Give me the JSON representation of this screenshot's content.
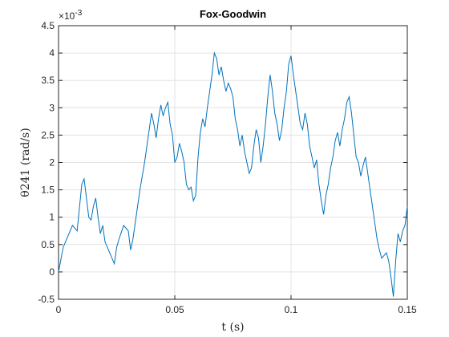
{
  "chart_data": {
    "type": "line",
    "title": "Fox-Goodwin",
    "xlabel": "t (s)",
    "ylabel": "θ241 (rad/s)",
    "y_exponent_label": "×10^-3",
    "y_scale_factor": 0.001,
    "xlim": [
      0,
      0.15
    ],
    "ylim": [
      -0.5,
      4.5
    ],
    "x_ticks": [
      "0",
      "0.05",
      "0.1",
      "0.15"
    ],
    "x_tick_values": [
      0,
      0.05,
      0.1,
      0.15
    ],
    "y_ticks": [
      "-0.5",
      "0",
      "0.5",
      "1",
      "1.5",
      "2",
      "2.5",
      "3",
      "3.5",
      "4",
      "4.5"
    ],
    "y_tick_values": [
      -0.5,
      0,
      0.5,
      1,
      1.5,
      2,
      2.5,
      3,
      3.5,
      4,
      4.5
    ],
    "grid": true,
    "line_color": "#0072BD",
    "series": [
      {
        "x": [
          0,
          0.002,
          0.004,
          0.006,
          0.008,
          0.01,
          0.011,
          0.012,
          0.013,
          0.014,
          0.015,
          0.016,
          0.017,
          0.018,
          0.019,
          0.02,
          0.022,
          0.024,
          0.025,
          0.026,
          0.028,
          0.03,
          0.031,
          0.032,
          0.034,
          0.035,
          0.036,
          0.037,
          0.038,
          0.039,
          0.04,
          0.041,
          0.042,
          0.043,
          0.044,
          0.045,
          0.046,
          0.047,
          0.048,
          0.049,
          0.05,
          0.051,
          0.052,
          0.053,
          0.054,
          0.055,
          0.056,
          0.057,
          0.058,
          0.059,
          0.06,
          0.061,
          0.062,
          0.063,
          0.064,
          0.065,
          0.066,
          0.067,
          0.068,
          0.069,
          0.07,
          0.071,
          0.072,
          0.073,
          0.074,
          0.075,
          0.076,
          0.077,
          0.078,
          0.079,
          0.08,
          0.081,
          0.082,
          0.083,
          0.084,
          0.085,
          0.086,
          0.087,
          0.088,
          0.089,
          0.09,
          0.091,
          0.092,
          0.093,
          0.094,
          0.095,
          0.096,
          0.097,
          0.098,
          0.099,
          0.1,
          0.101,
          0.102,
          0.103,
          0.104,
          0.105,
          0.106,
          0.107,
          0.108,
          0.109,
          0.11,
          0.111,
          0.112,
          0.113,
          0.114,
          0.115,
          0.116,
          0.117,
          0.118,
          0.119,
          0.12,
          0.121,
          0.122,
          0.123,
          0.124,
          0.125,
          0.126,
          0.127,
          0.128,
          0.129,
          0.13,
          0.131,
          0.132,
          0.133,
          0.134,
          0.135,
          0.136,
          0.137,
          0.138,
          0.139,
          0.14,
          0.141,
          0.142,
          0.143,
          0.144,
          0.145,
          0.146,
          0.147,
          0.148,
          0.149,
          0.15
        ],
        "y": [
          0.0,
          0.45,
          0.65,
          0.85,
          0.75,
          1.6,
          1.7,
          1.35,
          1.0,
          0.95,
          1.2,
          1.35,
          1.0,
          0.7,
          0.85,
          0.55,
          0.35,
          0.15,
          0.45,
          0.6,
          0.85,
          0.75,
          0.4,
          0.6,
          1.2,
          1.5,
          1.75,
          2.0,
          2.3,
          2.6,
          2.9,
          2.7,
          2.45,
          2.8,
          3.05,
          2.85,
          3.0,
          3.1,
          2.7,
          2.5,
          2.0,
          2.1,
          2.35,
          2.2,
          2.0,
          1.6,
          1.5,
          1.55,
          1.3,
          1.4,
          2.1,
          2.55,
          2.8,
          2.65,
          3.0,
          3.3,
          3.6,
          4.0,
          3.9,
          3.6,
          3.75,
          3.5,
          3.3,
          3.45,
          3.35,
          3.2,
          2.8,
          2.6,
          2.3,
          2.5,
          2.2,
          2.0,
          1.8,
          1.9,
          2.3,
          2.6,
          2.45,
          2.0,
          2.3,
          2.7,
          3.2,
          3.6,
          3.3,
          2.9,
          2.7,
          2.4,
          2.6,
          3.0,
          3.3,
          3.8,
          3.95,
          3.6,
          3.3,
          3.0,
          2.7,
          2.6,
          2.9,
          2.7,
          2.3,
          2.1,
          1.9,
          2.05,
          1.6,
          1.3,
          1.05,
          1.4,
          1.6,
          1.9,
          2.1,
          2.4,
          2.55,
          2.3,
          2.6,
          2.8,
          3.1,
          3.2,
          2.9,
          2.5,
          2.1,
          2.0,
          1.75,
          1.95,
          2.1,
          1.8,
          1.5,
          1.2,
          0.9,
          0.6,
          0.4,
          0.25,
          0.3,
          0.35,
          0.2,
          -0.1,
          -0.45,
          0.2,
          0.7,
          0.55,
          0.75,
          0.85,
          1.2
        ]
      }
    ]
  }
}
